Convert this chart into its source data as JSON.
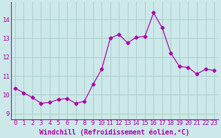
{
  "x": [
    0,
    1,
    2,
    3,
    4,
    5,
    6,
    7,
    8,
    9,
    10,
    11,
    12,
    13,
    14,
    15,
    16,
    17,
    18,
    19,
    20,
    21,
    22,
    23
  ],
  "y": [
    10.35,
    10.1,
    9.85,
    9.55,
    9.6,
    9.75,
    9.8,
    9.55,
    9.65,
    10.55,
    11.35,
    13.0,
    13.2,
    12.75,
    13.05,
    13.1,
    14.35,
    13.55,
    12.2,
    11.5,
    11.45,
    11.1,
    11.35,
    11.3
  ],
  "line_color": "#aa00aa",
  "marker": "D",
  "marker_size": 2.5,
  "bg_color": "#cce8e8",
  "grid_color": "#aacece",
  "xlabel": "Windchill (Refroidissement éolien,°C)",
  "xlabel_fontsize": 7,
  "tick_fontsize": 6.5,
  "yticks": [
    9,
    10,
    11,
    12,
    13,
    14
  ],
  "ylim": [
    8.7,
    14.9
  ],
  "xlim": [
    -0.5,
    23.5
  ]
}
